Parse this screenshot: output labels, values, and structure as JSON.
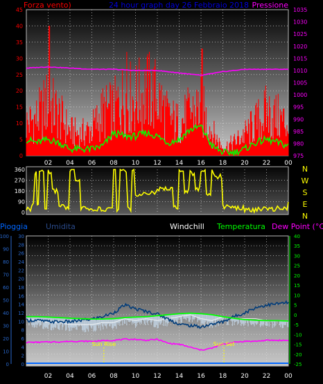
{
  "header": {
    "left": "Forza vento)",
    "center": "24 hour graph day  26 Febbraio 2018",
    "right": "Pressione"
  },
  "colors": {
    "wind": "#ff0000",
    "wind_avg": "#00ff00",
    "pressure": "#ff00ff",
    "direction": "#ffff00",
    "rain": "#0066ff",
    "humidity": "#003c7a",
    "humidity_band": "#c0d0e0",
    "windchill": "#ffffff",
    "temperature": "#00ff00",
    "dewpoint": "#ff00ff",
    "sun": "#ffff00"
  },
  "x_ticks": [
    "02",
    "04",
    "06",
    "08",
    "10",
    "12",
    "14",
    "16",
    "18",
    "20",
    "22",
    "00"
  ],
  "compass": [
    "N",
    "W",
    "S",
    "E",
    "N"
  ],
  "panel3_header": {
    "rain": "Pioggia",
    "humidity": "Umidita",
    "windchill": "Windchill",
    "temperature": "Temperatura",
    "dewpoint": "Dew Point (°C)"
  },
  "sun": {
    "rise_label": "Sun Rise",
    "set_label": "Sun Set",
    "rise_hour": 7.1,
    "set_hour": 18.1
  },
  "chart_data": [
    {
      "type": "line",
      "x_range_hours": [
        0,
        24
      ],
      "y_left_ticks": [
        "45",
        "40",
        "35",
        "30",
        "25",
        "20",
        "15",
        "10",
        "5",
        "0"
      ],
      "y_left_range": [
        0,
        45
      ],
      "y_right_ticks": [
        "1035",
        "1030",
        "1025",
        "1020",
        "1015",
        "1010",
        "1005",
        "1000",
        "995",
        "990",
        "985",
        "980",
        "975"
      ],
      "y_right_range": [
        975,
        1035
      ],
      "series": [
        {
          "key": "wind_gust",
          "axis": "left",
          "x": [
            0,
            1,
            2,
            3,
            4,
            5,
            6,
            7,
            8,
            9,
            10,
            11,
            12,
            13,
            14,
            15,
            16,
            17,
            18,
            19,
            20,
            21,
            22,
            23,
            24
          ],
          "values": [
            12,
            14,
            20,
            15,
            9,
            8,
            10,
            16,
            17,
            22,
            21,
            24,
            22,
            14,
            12,
            16,
            18,
            9,
            3,
            5,
            8,
            12,
            16,
            14,
            12
          ],
          "peaks_x": [
            2.1,
            9.2,
            16.1
          ],
          "peaks_y": [
            40,
            32,
            33
          ]
        },
        {
          "key": "wind_avg",
          "axis": "left",
          "x": [
            0,
            1,
            2,
            3,
            4,
            5,
            6,
            7,
            8,
            9,
            10,
            11,
            12,
            13,
            14,
            15,
            16,
            17,
            18,
            19,
            20,
            21,
            22,
            23,
            24
          ],
          "values": [
            5,
            4,
            5,
            4,
            2,
            2,
            2,
            3,
            7,
            6,
            6,
            7,
            6,
            4,
            5,
            8,
            9,
            3,
            1,
            1,
            2,
            4,
            5,
            4,
            3
          ]
        },
        {
          "key": "pressure",
          "axis": "right",
          "x": [
            0,
            2,
            4,
            6,
            8,
            10,
            12,
            14,
            16,
            18,
            20,
            22,
            24
          ],
          "values": [
            1011,
            1011.5,
            1011,
            1010.5,
            1010.5,
            1010,
            1010,
            1009,
            1008,
            1009.5,
            1010.5,
            1010.5,
            1010.5
          ]
        }
      ]
    },
    {
      "type": "line",
      "x_range_hours": [
        0,
        24
      ],
      "y_ticks": [
        "360",
        "270",
        "180",
        "90",
        "0"
      ],
      "y_range": [
        0,
        360
      ],
      "series": [
        {
          "key": "wind_direction",
          "x": [
            0,
            0.5,
            0.8,
            1,
            1.2,
            1.7,
            2,
            2.4,
            3,
            3.5,
            4,
            4.5,
            5,
            5.5,
            6,
            7,
            7.5,
            8,
            8.3,
            8.6,
            9,
            9.3,
            9.7,
            10,
            11,
            12,
            13,
            13.5,
            14,
            14.5,
            15,
            15.5,
            16,
            16.5,
            17,
            17.3,
            18,
            19,
            20,
            21,
            22,
            23,
            24
          ],
          "values": [
            30,
            60,
            340,
            80,
            360,
            30,
            340,
            180,
            60,
            40,
            360,
            280,
            40,
            20,
            30,
            20,
            50,
            360,
            20,
            360,
            340,
            30,
            360,
            150,
            170,
            200,
            190,
            40,
            360,
            180,
            330,
            200,
            360,
            150,
            340,
            300,
            50,
            40,
            20,
            30,
            25,
            40,
            70
          ]
        }
      ]
    },
    {
      "type": "line",
      "x_range_hours": [
        0,
        24
      ],
      "y_left_ticks": [
        "100",
        "90",
        "80",
        "70",
        "60",
        "50",
        "40",
        "30",
        "20",
        "10",
        "0"
      ],
      "y_left_range": [
        0,
        100
      ],
      "y_mid_ticks": [
        "30",
        "28",
        "26",
        "24",
        "22",
        "20",
        "18",
        "16",
        "14",
        "12",
        "10",
        "8",
        "6",
        "4",
        "2",
        "0"
      ],
      "y_mid_range": [
        0,
        30
      ],
      "y_right_ticks": [
        "40",
        "35",
        "30",
        "25",
        "20",
        "15",
        "10",
        "5",
        "0",
        "-5",
        "-10",
        "-15",
        "-20",
        "-25"
      ],
      "y_right_range": [
        -25,
        40
      ],
      "series": [
        {
          "key": "rain",
          "axis": "mid",
          "x": [
            0,
            24
          ],
          "values": [
            0,
            0
          ]
        },
        {
          "key": "humidity",
          "axis": "left",
          "x": [
            0,
            1,
            2,
            3,
            4,
            5,
            6,
            7,
            8,
            9,
            10,
            11,
            12,
            13,
            14,
            15,
            16,
            17,
            18,
            19,
            20,
            21,
            22,
            23,
            24
          ],
          "values": [
            34,
            34,
            33,
            33,
            33,
            34,
            35,
            37,
            40,
            46,
            43,
            41,
            39,
            35,
            31,
            30,
            29,
            31,
            33,
            37,
            40,
            44,
            46,
            47,
            48
          ]
        },
        {
          "key": "windchill",
          "axis": "right",
          "x": [
            0,
            1,
            2,
            3,
            4,
            5,
            6,
            7,
            8,
            9,
            10,
            11,
            12,
            13,
            14,
            15,
            16,
            17,
            18,
            19,
            20,
            21,
            22,
            23,
            24
          ],
          "values": [
            -2,
            -3,
            -4,
            -4,
            -5,
            -5,
            -5,
            -4,
            -4,
            -2,
            -3,
            -2,
            -3,
            -2,
            -1,
            0,
            -2,
            -3,
            -1,
            -2,
            -2,
            -2,
            -3,
            -3,
            -3
          ]
        },
        {
          "key": "temperature",
          "axis": "right",
          "x": [
            0,
            1,
            2,
            3,
            4,
            5,
            6,
            7,
            8,
            9,
            10,
            11,
            12,
            13,
            14,
            15,
            16,
            17,
            18,
            19,
            20,
            21,
            22,
            23,
            24
          ],
          "values": [
            -1,
            -1,
            -1.2,
            -1.5,
            -1.8,
            -2,
            -2.2,
            -2.2,
            -2,
            -1.5,
            -1.2,
            -1,
            -0.5,
            0,
            0.5,
            0.8,
            0.5,
            0,
            -1,
            -1.8,
            -2.5,
            -2.8,
            -3,
            -3,
            -3.2
          ]
        },
        {
          "key": "dewpoint",
          "axis": "right",
          "x": [
            0,
            1,
            2,
            3,
            4,
            5,
            6,
            7,
            8,
            9,
            10,
            11,
            12,
            13,
            14,
            15,
            16,
            17,
            18,
            19,
            20,
            21,
            22,
            23,
            24
          ],
          "values": [
            -14,
            -14,
            -13.8,
            -13.8,
            -13.5,
            -13.5,
            -13.5,
            -13.2,
            -13,
            -12.5,
            -12.5,
            -13,
            -12.5,
            -14.5,
            -15,
            -16.5,
            -18,
            -17,
            -15,
            -14,
            -13.5,
            -13.5,
            -13,
            -13,
            -13
          ]
        }
      ]
    }
  ]
}
